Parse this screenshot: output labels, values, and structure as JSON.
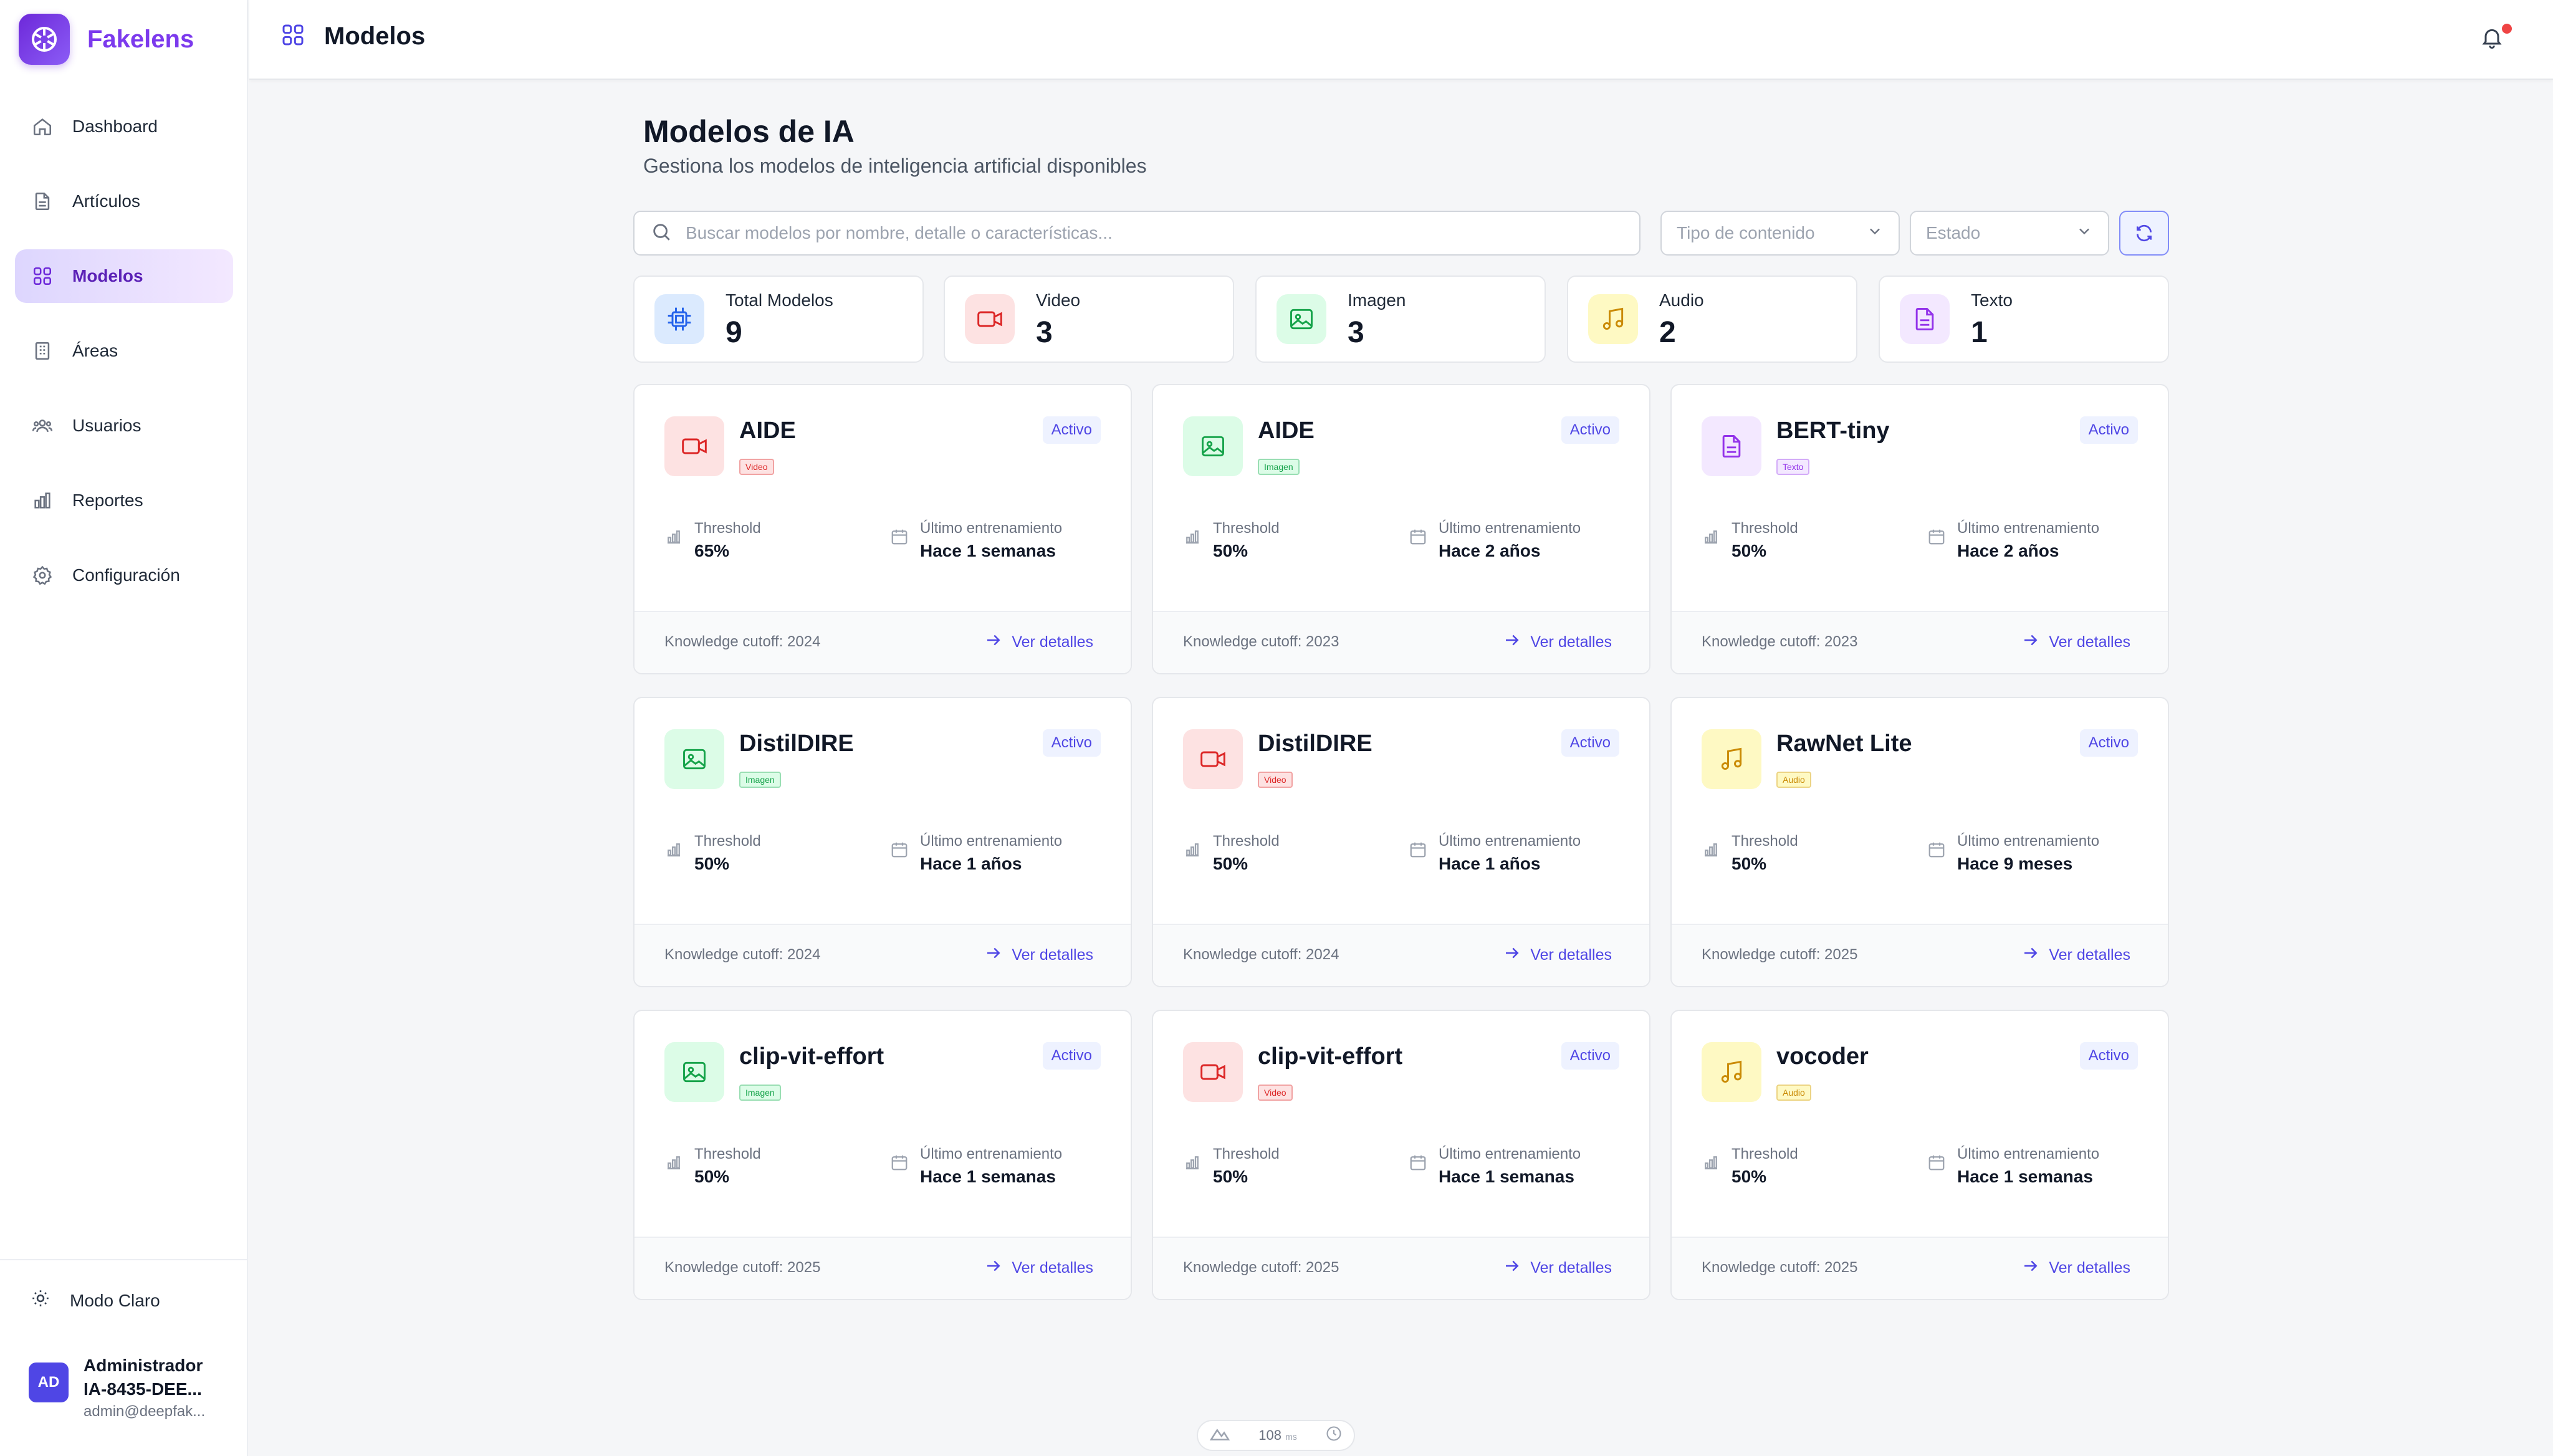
{
  "app": {
    "name": "Fakelens",
    "brand_color": "#7c3aed"
  },
  "sidebar": {
    "items": [
      {
        "label": "Dashboard",
        "icon": "home-icon"
      },
      {
        "label": "Artículos",
        "icon": "document-icon"
      },
      {
        "label": "Modelos",
        "icon": "grid-icon",
        "active": true
      },
      {
        "label": "Áreas",
        "icon": "building-icon"
      },
      {
        "label": "Usuarios",
        "icon": "users-icon"
      },
      {
        "label": "Reportes",
        "icon": "bar-chart-icon"
      },
      {
        "label": "Configuración",
        "icon": "gear-icon"
      }
    ],
    "mode_label": "Modo Claro",
    "user": {
      "initials": "AD",
      "name": "Administrador",
      "id": "IA-8435-DEE...",
      "email": "admin@deepfak..."
    }
  },
  "topbar": {
    "title": "Modelos"
  },
  "page": {
    "title": "Modelos de IA",
    "subtitle": "Gestiona los modelos de inteligencia artificial disponibles"
  },
  "filters": {
    "search_placeholder": "Buscar modelos por nombre, detalle o características...",
    "content_type": "Tipo de contenido",
    "status": "Estado"
  },
  "stats": [
    {
      "label": "Total Modelos",
      "value": "9",
      "kind": "total"
    },
    {
      "label": "Video",
      "value": "3",
      "kind": "video"
    },
    {
      "label": "Imagen",
      "value": "3",
      "kind": "image"
    },
    {
      "label": "Audio",
      "value": "2",
      "kind": "audio"
    },
    {
      "label": "Texto",
      "value": "1",
      "kind": "text"
    }
  ],
  "labels": {
    "threshold": "Threshold",
    "last_training": "Último entrenamiento",
    "details": "Ver detalles"
  },
  "models": [
    {
      "name": "AIDE",
      "type": "Video",
      "kind": "video",
      "status": "Activo",
      "threshold": "65%",
      "last_training": "Hace 1 semanas",
      "cutoff": "Knowledge cutoff: 2024"
    },
    {
      "name": "AIDE",
      "type": "Imagen",
      "kind": "image",
      "status": "Activo",
      "threshold": "50%",
      "last_training": "Hace 2 años",
      "cutoff": "Knowledge cutoff: 2023"
    },
    {
      "name": "BERT-tiny",
      "type": "Texto",
      "kind": "text",
      "status": "Activo",
      "threshold": "50%",
      "last_training": "Hace 2 años",
      "cutoff": "Knowledge cutoff: 2023"
    },
    {
      "name": "DistilDIRE",
      "type": "Imagen",
      "kind": "image",
      "status": "Activo",
      "threshold": "50%",
      "last_training": "Hace 1 años",
      "cutoff": "Knowledge cutoff: 2024"
    },
    {
      "name": "DistilDIRE",
      "type": "Video",
      "kind": "video",
      "status": "Activo",
      "threshold": "50%",
      "last_training": "Hace 1 años",
      "cutoff": "Knowledge cutoff: 2024"
    },
    {
      "name": "RawNet Lite",
      "type": "Audio",
      "kind": "audio",
      "status": "Activo",
      "threshold": "50%",
      "last_training": "Hace 9 meses",
      "cutoff": "Knowledge cutoff: 2025"
    },
    {
      "name": "clip-vit-effort",
      "type": "Imagen",
      "kind": "image",
      "status": "Activo",
      "threshold": "50%",
      "last_training": "Hace 1 semanas",
      "cutoff": "Knowledge cutoff: 2025"
    },
    {
      "name": "clip-vit-effort",
      "type": "Video",
      "kind": "video",
      "status": "Activo",
      "threshold": "50%",
      "last_training": "Hace 1 semanas",
      "cutoff": "Knowledge cutoff: 2025"
    },
    {
      "name": "vocoder",
      "type": "Audio",
      "kind": "audio",
      "status": "Activo",
      "threshold": "50%",
      "last_training": "Hace 1 semanas",
      "cutoff": "Knowledge cutoff: 2025"
    }
  ],
  "latency": {
    "value": "108",
    "unit": "ms"
  },
  "colors": {
    "video": {
      "bg": "#fde2e2",
      "fg": "#dc2626"
    },
    "image": {
      "bg": "#dcfce7",
      "fg": "#16a34a"
    },
    "audio": {
      "bg": "#fef9c3",
      "fg": "#ca8a04"
    },
    "text": {
      "bg": "#f3e8ff",
      "fg": "#9333ea"
    },
    "total": {
      "bg": "#dbeafe",
      "fg": "#2563eb"
    },
    "accent": "#4f46e5"
  }
}
